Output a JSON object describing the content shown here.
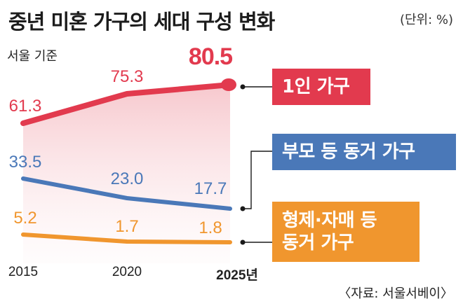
{
  "title": "중년 미혼 가구의 세대 구성 변화",
  "unit": "(단위: %)",
  "subtitle": "서울 기준",
  "source": "〈자료: 서울서베이〉",
  "colors": {
    "single": "#e23a4e",
    "parents": "#4a78b8",
    "siblings": "#f0962e"
  },
  "chart_data": {
    "type": "line",
    "x": [
      "2015",
      "2020",
      "2025년"
    ],
    "series": [
      {
        "name": "1인 가구",
        "values": [
          61.3,
          75.3,
          80.5
        ],
        "labels": [
          "61.3",
          "75.3",
          "80.5"
        ]
      },
      {
        "name": "부모 등 동거 가구",
        "values": [
          33.5,
          23.0,
          17.7
        ],
        "labels": [
          "33.5",
          "23.0",
          "17.7"
        ]
      },
      {
        "name": "형제·자매 등 동거 가구",
        "legend_lines": [
          "형제·자매 등",
          "동거 가구"
        ],
        "values": [
          5.2,
          1.7,
          1.8
        ],
        "labels": [
          "5.2",
          "1.7",
          "1.8"
        ]
      }
    ]
  }
}
